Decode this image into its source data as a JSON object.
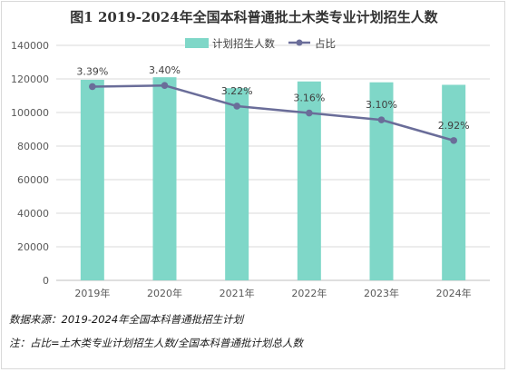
{
  "title": "图1 2019-2024年全国本科普通批土木类专业计划招生人数",
  "notes": {
    "source": "数据来源：2019-2024年全国本科普通批招生计划",
    "remark": "注：占比=土木类专业计划招生人数/全国本科普通批计划总人数"
  },
  "colors": {
    "bar": "#7fd7c8",
    "line": "#6a6d99",
    "grid": "#d9d9d9"
  },
  "chart_data": {
    "type": "bar",
    "categories": [
      "2019年",
      "2020年",
      "2021年",
      "2022年",
      "2023年",
      "2024年"
    ],
    "series": [
      {
        "name": "计划招生人数",
        "type": "bar",
        "axis": "left",
        "values": [
          119500,
          121000,
          114500,
          118500,
          118000,
          116500
        ]
      },
      {
        "name": "占比",
        "type": "line",
        "axis": "right",
        "values": [
          3.39,
          3.4,
          3.22,
          3.16,
          3.1,
          2.92
        ],
        "labels": [
          "3.39%",
          "3.40%",
          "3.22%",
          "3.16%",
          "3.10%",
          "2.92%"
        ]
      }
    ],
    "yticks": [
      0,
      20000,
      40000,
      60000,
      80000,
      100000,
      120000,
      140000
    ],
    "ylim": [
      0,
      140000
    ],
    "legend_position": "top-right",
    "grid": true
  }
}
